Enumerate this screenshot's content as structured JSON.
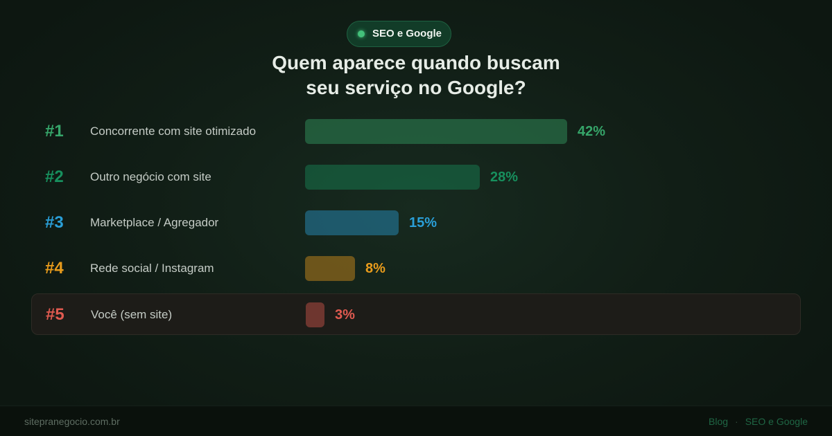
{
  "chart_data": {
    "type": "bar",
    "badge": "SEO e Google",
    "title": "Quem aparece quando buscam seu serviço no Google?",
    "ranks": [
      "#1",
      "#2",
      "#3",
      "#4",
      "#5"
    ],
    "categories": [
      "Concorrente com site otimizado",
      "Outro negócio com site",
      "Marketplace / Agregador",
      "Rede social / Instagram",
      "Você (sem site)"
    ],
    "values": [
      42,
      28,
      15,
      8,
      3
    ],
    "value_labels": [
      "42%",
      "28%",
      "15%",
      "8%",
      "3%"
    ],
    "colors": [
      "#36a66a",
      "#17905e",
      "#2a9fd8",
      "#e99c1c",
      "#e05a50"
    ],
    "highlight_index": 4
  },
  "footer": {
    "site": "sitepranegocio.com.br",
    "breadcrumbs": [
      "Blog",
      "SEO e Google"
    ]
  }
}
